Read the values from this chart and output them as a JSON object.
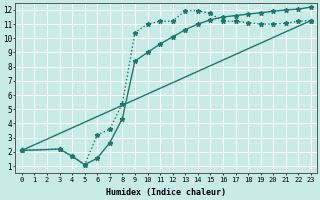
{
  "line1_x": [
    0,
    3,
    4,
    5,
    6,
    7,
    8,
    9,
    10,
    11,
    12,
    13,
    14,
    15,
    16,
    17,
    18,
    19,
    20,
    21,
    22,
    23
  ],
  "line1_y": [
    2.1,
    2.2,
    1.7,
    1.1,
    3.2,
    3.6,
    5.4,
    10.4,
    11.0,
    11.2,
    11.2,
    11.95,
    11.95,
    11.75,
    11.2,
    11.2,
    11.1,
    11.0,
    11.0,
    11.05,
    11.2,
    11.25
  ],
  "line2_x": [
    0,
    23
  ],
  "line2_y": [
    2.1,
    11.25
  ],
  "line3_x": [
    0,
    3,
    4,
    5,
    6,
    7,
    8,
    9,
    10,
    11,
    12,
    13,
    14,
    15,
    16,
    17,
    18,
    19,
    20,
    21,
    22,
    23
  ],
  "line3_y": [
    2.1,
    2.2,
    1.7,
    1.1,
    1.55,
    2.65,
    4.35,
    8.4,
    9.0,
    9.6,
    10.1,
    10.6,
    11.0,
    11.3,
    11.5,
    11.6,
    11.7,
    11.8,
    11.9,
    12.0,
    12.05,
    12.2
  ],
  "line_color": "#1a7a6e",
  "bg_color": "#c8ebe8",
  "grid_color": "#ffffff",
  "xlabel": "Humidex (Indice chaleur)",
  "xlim": [
    -0.5,
    23.5
  ],
  "ylim": [
    0.5,
    12.5
  ],
  "xticks": [
    0,
    1,
    2,
    3,
    4,
    5,
    6,
    7,
    8,
    9,
    10,
    11,
    12,
    13,
    14,
    15,
    16,
    17,
    18,
    19,
    20,
    21,
    22,
    23
  ],
  "yticks": [
    1,
    2,
    3,
    4,
    5,
    6,
    7,
    8,
    9,
    10,
    11,
    12
  ],
  "marker": "*",
  "markersize": 3.5,
  "linewidth": 1.0
}
